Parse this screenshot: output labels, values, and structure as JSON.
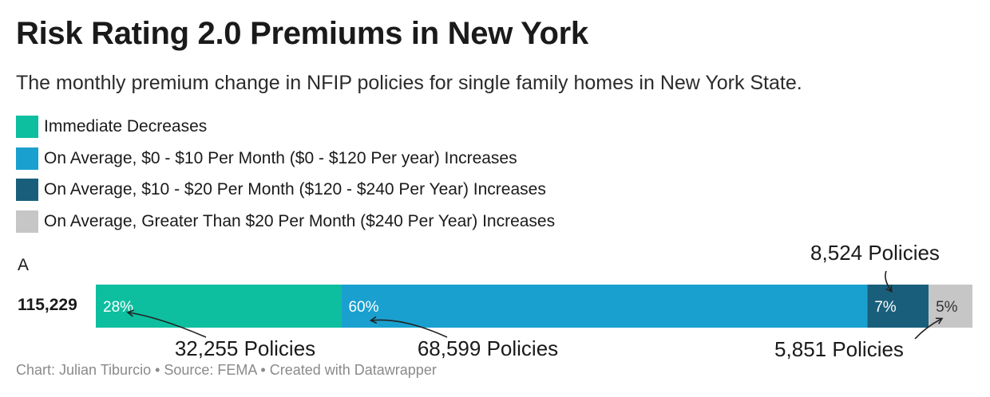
{
  "title": "Risk Rating 2.0 Premiums in New York",
  "subtitle": "The monthly premium change in NFIP policies for single family homes in New York State.",
  "legend": [
    {
      "label": "Immediate Decreases",
      "color": "#0dbe9f"
    },
    {
      "label": "On Average, $0 - $10 Per Month ($0 - $120 Per year) Increases",
      "color": "#1aa0cf"
    },
    {
      "label": "On Average, $10 - $20 Per Month ($120 - $240 Per Year) Increases",
      "color": "#195f7c"
    },
    {
      "label": "On Average, Greater Than $20 Per Month ($240 Per Year) Increases",
      "color": "#c6c6c6"
    }
  ],
  "row": {
    "header": "A",
    "total_label": "115,229"
  },
  "footer": "Chart: Julian Tiburcio • Source: FEMA • Created with Datawrapper",
  "chart_data": {
    "type": "bar",
    "orientation": "horizontal-stacked",
    "title": "Risk Rating 2.0 Premiums in New York",
    "categories": [
      "A"
    ],
    "total": 115229,
    "xlim": [
      0,
      100
    ],
    "series": [
      {
        "name": "Immediate Decreases",
        "values": [
          28
        ],
        "label": "28%",
        "policies": "32,255 Policies",
        "color": "#0dbe9f",
        "text_color": "#ffffff"
      },
      {
        "name": "On Average, $0 - $10 Per Month ($0 - $120 Per year) Increases",
        "values": [
          60
        ],
        "label": "60%",
        "policies": "68,599 Policies",
        "color": "#1aa0cf",
        "text_color": "#ffffff"
      },
      {
        "name": "On Average, $10 - $20 Per Month ($120 - $240 Per Year) Increases",
        "values": [
          7
        ],
        "label": "7%",
        "policies": "8,524 Policies",
        "color": "#195f7c",
        "text_color": "#ffffff"
      },
      {
        "name": "On Average, Greater Than $20 Per Month ($240 Per Year) Increases",
        "values": [
          5
        ],
        "label": "5%",
        "policies": "5,851 Policies",
        "color": "#c6c6c6",
        "text_color": "#333333"
      }
    ]
  }
}
